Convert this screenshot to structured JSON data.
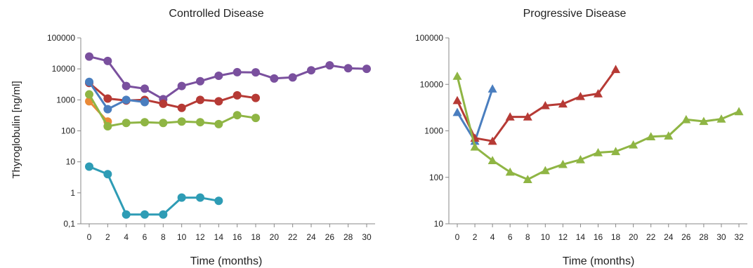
{
  "chart_data": [
    {
      "type": "line",
      "title": "Controlled Disease",
      "xlabel": "Time (months)",
      "ylabel": "Thyroglobulin  [ng/ml]",
      "yscale": "log",
      "ylim": [
        0.1,
        100000
      ],
      "xlim": [
        0,
        30
      ],
      "xticks": [
        "0",
        "2",
        "4",
        "6",
        "8",
        "10",
        "12",
        "14",
        "16",
        "18",
        "20",
        "22",
        "24",
        "26",
        "28",
        "30"
      ],
      "yticks": [
        "0,1",
        "1",
        "10",
        "100",
        "1000",
        "10000",
        "100000"
      ],
      "marker": "circle",
      "grid": false,
      "series": [
        {
          "color": "#7a509e",
          "points": [
            [
              0,
              25000
            ],
            [
              2,
              18000
            ],
            [
              4,
              2800
            ],
            [
              6,
              2300
            ],
            [
              8,
              1050
            ],
            [
              10,
              2800
            ],
            [
              12,
              4000
            ],
            [
              14,
              6000
            ],
            [
              16,
              7800
            ],
            [
              18,
              7700
            ],
            [
              20,
              4900
            ],
            [
              22,
              5300
            ],
            [
              24,
              9000
            ],
            [
              26,
              13000
            ],
            [
              28,
              10500
            ],
            [
              30,
              10000
            ]
          ]
        },
        {
          "color": "#b63a35",
          "points": [
            [
              0,
              3500
            ],
            [
              2,
              1100
            ],
            [
              4,
              950
            ],
            [
              6,
              1000
            ],
            [
              8,
              750
            ],
            [
              10,
              550
            ],
            [
              12,
              1000
            ],
            [
              14,
              900
            ],
            [
              16,
              1400
            ],
            [
              18,
              1150
            ]
          ]
        },
        {
          "color": "#4a7ebf",
          "points": [
            [
              0,
              3800
            ],
            [
              2,
              500
            ],
            [
              4,
              1000
            ],
            [
              6,
              850
            ]
          ]
        },
        {
          "color": "#ea8a37",
          "points": [
            [
              0,
              900
            ],
            [
              2,
              200
            ]
          ]
        },
        {
          "color": "#8fb544",
          "points": [
            [
              0,
              1500
            ],
            [
              2,
              140
            ],
            [
              4,
              180
            ],
            [
              6,
              190
            ],
            [
              8,
              180
            ],
            [
              10,
              200
            ],
            [
              12,
              190
            ],
            [
              14,
              165
            ],
            [
              16,
              320
            ],
            [
              18,
              260
            ]
          ]
        },
        {
          "color": "#2e9cb5",
          "points": [
            [
              0,
              7
            ],
            [
              2,
              4
            ],
            [
              4,
              0.2
            ],
            [
              6,
              0.2
            ],
            [
              8,
              0.2
            ],
            [
              10,
              0.7
            ],
            [
              12,
              0.7
            ],
            [
              14,
              0.55
            ]
          ]
        }
      ]
    },
    {
      "type": "line",
      "title": "Progressive Disease",
      "xlabel": "Time (months)",
      "ylabel": "",
      "yscale": "log",
      "ylim": [
        10,
        100000
      ],
      "xlim": [
        0,
        32
      ],
      "xticks": [
        "0",
        "2",
        "4",
        "6",
        "8",
        "10",
        "12",
        "14",
        "16",
        "18",
        "20",
        "22",
        "24",
        "26",
        "28",
        "30",
        "32"
      ],
      "yticks": [
        "10",
        "100",
        "1000",
        "10000",
        "100000"
      ],
      "marker": "triangle",
      "grid": false,
      "series": [
        {
          "color": "#4a7ebf",
          "points": [
            [
              0,
              2500
            ],
            [
              2,
              600
            ],
            [
              4,
              8000
            ]
          ]
        },
        {
          "color": "#b63a35",
          "points": [
            [
              0,
              4500
            ],
            [
              2,
              700
            ],
            [
              4,
              600
            ],
            [
              6,
              2000
            ],
            [
              8,
              2000
            ],
            [
              10,
              3500
            ],
            [
              12,
              3800
            ],
            [
              14,
              5500
            ],
            [
              16,
              6300
            ],
            [
              18,
              21000
            ]
          ]
        },
        {
          "color": "#8fb544",
          "points": [
            [
              0,
              15000
            ],
            [
              2,
              450
            ],
            [
              4,
              230
            ],
            [
              6,
              130
            ],
            [
              8,
              90
            ],
            [
              10,
              140
            ],
            [
              12,
              190
            ],
            [
              14,
              240
            ],
            [
              16,
              340
            ],
            [
              18,
              360
            ],
            [
              20,
              500
            ],
            [
              22,
              750
            ],
            [
              24,
              780
            ],
            [
              26,
              1750
            ],
            [
              28,
              1600
            ],
            [
              30,
              1800
            ],
            [
              32,
              2600
            ]
          ]
        }
      ]
    }
  ]
}
